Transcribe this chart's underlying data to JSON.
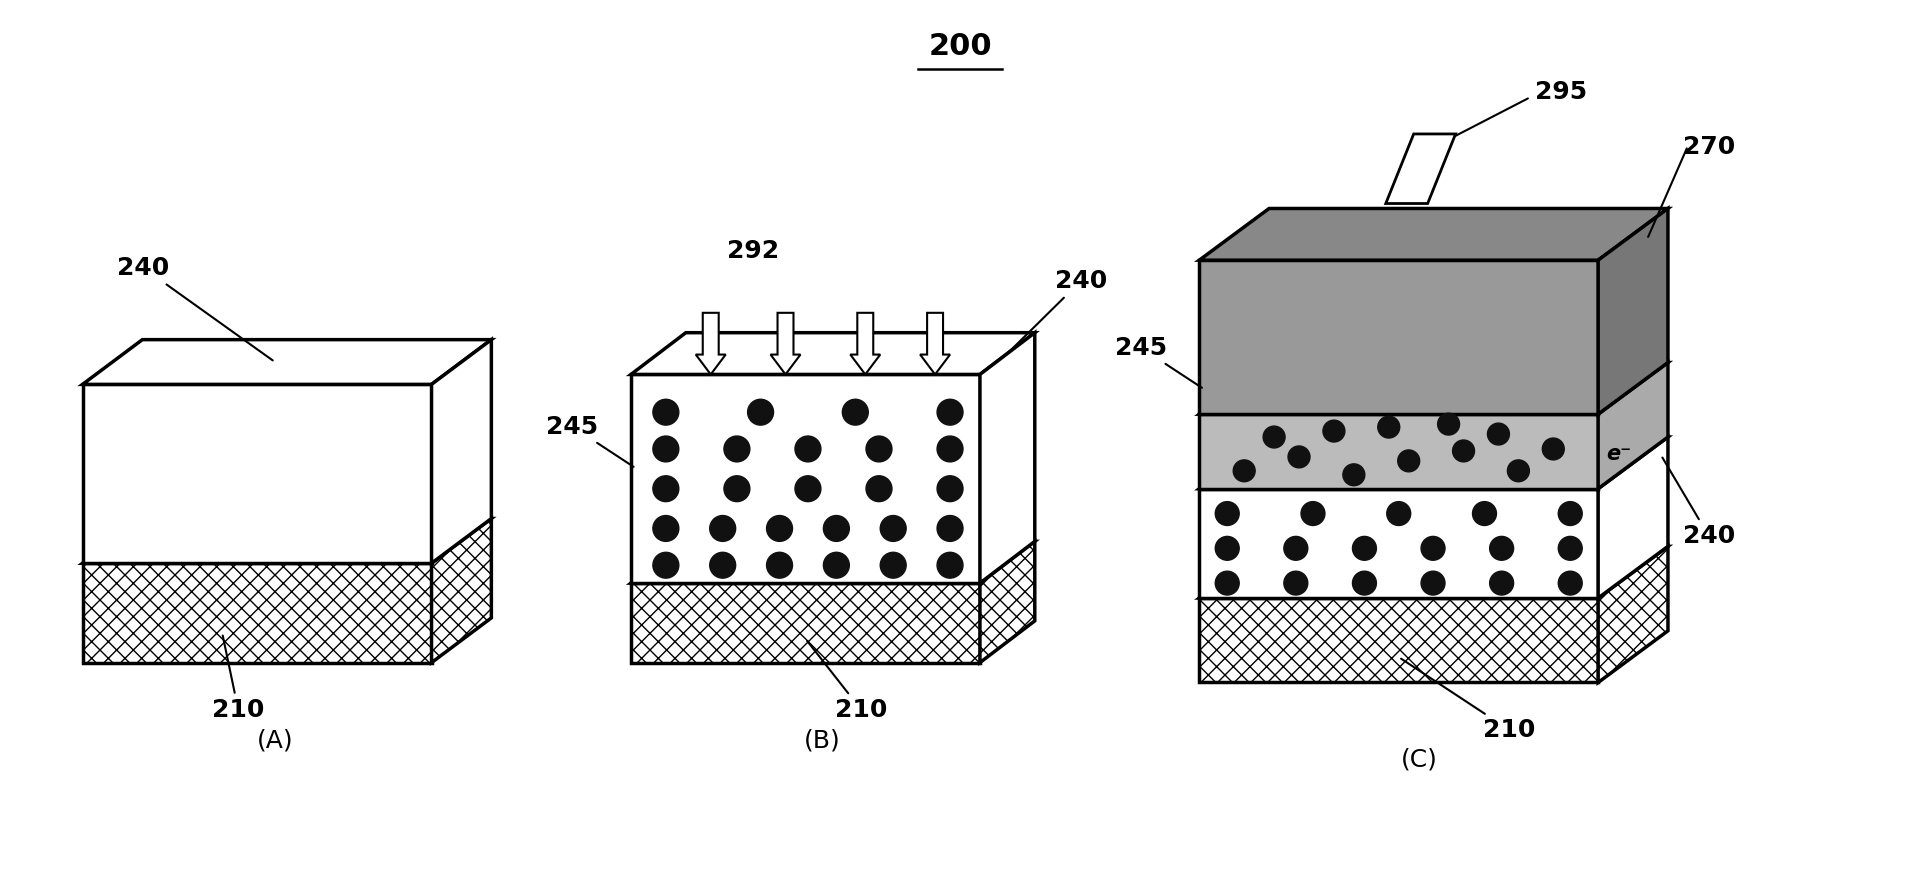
{
  "title": "200",
  "bg_color": "#ffffff",
  "label_A": "(A)",
  "label_B": "(B)",
  "label_C": "(C)",
  "labels": {
    "240_A": "240",
    "210_A": "210",
    "292_B": "292",
    "245_B": "245",
    "240_B": "240",
    "210_B": "210",
    "295_C": "295",
    "270_C": "270",
    "245_C": "245",
    "240_C": "240",
    "210_C": "210",
    "eminus": "e⁻"
  },
  "text_color": "#000000",
  "line_color": "#000000",
  "dot_color": "#111111",
  "gray_fill": "#808080"
}
